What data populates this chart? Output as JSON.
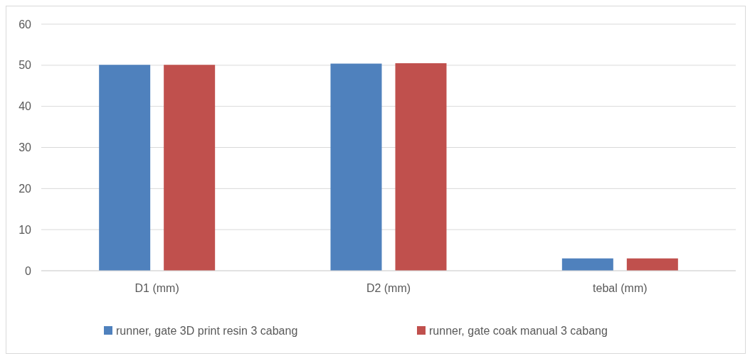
{
  "chart_data": {
    "type": "bar",
    "categories": [
      "D1 (mm)",
      "D2 (mm)",
      "tebal (mm)"
    ],
    "series": [
      {
        "name": "runner, gate 3D print resin 3 cabang",
        "color": "#4f81bd",
        "values": [
          50.1,
          50.4,
          3.0
        ]
      },
      {
        "name": "runner, gate coak manual 3 cabang",
        "color": "#c0504d",
        "values": [
          50.1,
          50.5,
          3.0
        ]
      }
    ],
    "ylim": [
      0,
      60
    ],
    "yticks": [
      0,
      10,
      20,
      30,
      40,
      50,
      60
    ],
    "grid": "y",
    "legend": "bottom"
  }
}
